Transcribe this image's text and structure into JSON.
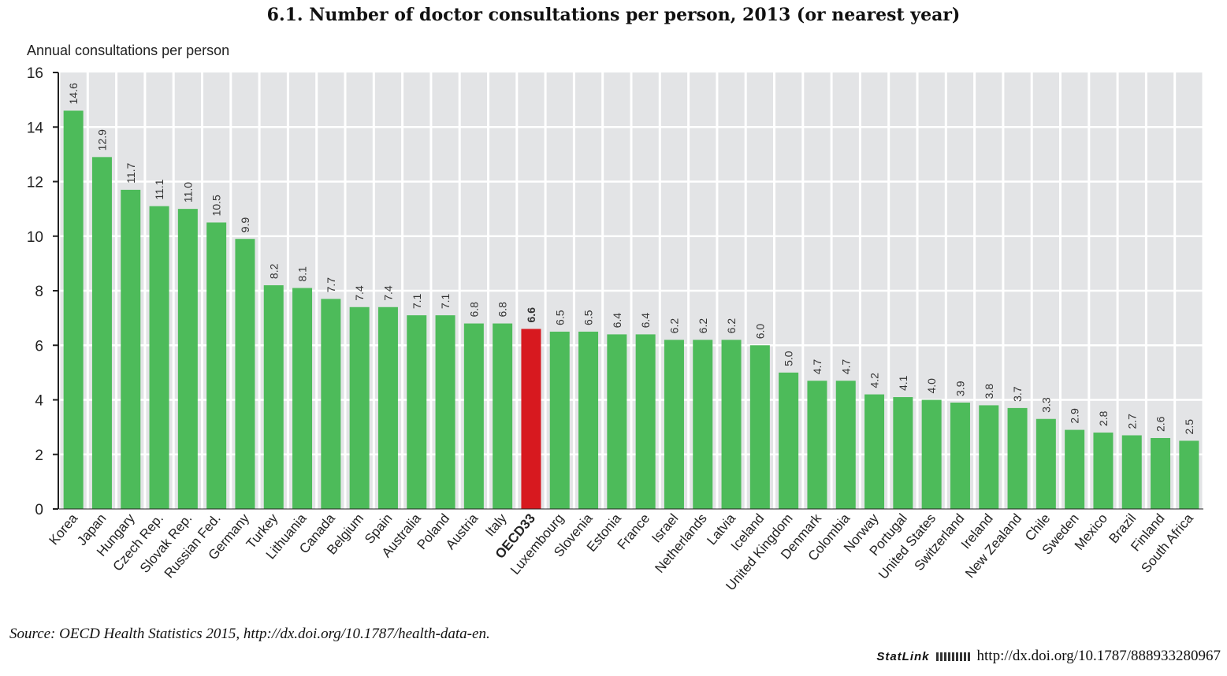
{
  "chart_data": {
    "type": "bar",
    "title": "6.1.  Number of doctor consultations per person, 2013 (or nearest year)",
    "ylabel": "Annual consultations per person",
    "xlabel": "",
    "ylim": [
      0,
      16
    ],
    "yticks": [
      0,
      2,
      4,
      6,
      8,
      10,
      12,
      14,
      16
    ],
    "grid": true,
    "highlight": "OECD33",
    "colors": {
      "bar": "#4dbb5a",
      "highlight": "#d7191f",
      "panel": "#e3e4e6"
    },
    "categories": [
      "Korea",
      "Japan",
      "Hungary",
      "Czech Rep.",
      "Slovak Rep.",
      "Russian Fed.",
      "Germany",
      "Turkey",
      "Lithuania",
      "Canada",
      "Belgium",
      "Spain",
      "Australia",
      "Poland",
      "Austria",
      "Italy",
      "OECD33",
      "Luxembourg",
      "Slovenia",
      "Estonia",
      "France",
      "Israel",
      "Netherlands",
      "Latvia",
      "Iceland",
      "United Kingdom",
      "Denmark",
      "Colombia",
      "Norway",
      "Portugal",
      "United States",
      "Switzerland",
      "Ireland",
      "New Zealand",
      "Chile",
      "Sweden",
      "Mexico",
      "Brazil",
      "Finland",
      "South Africa"
    ],
    "values": [
      14.6,
      12.9,
      11.7,
      11.1,
      11.0,
      10.5,
      9.9,
      8.2,
      8.1,
      7.7,
      7.4,
      7.4,
      7.1,
      7.1,
      6.8,
      6.8,
      6.6,
      6.5,
      6.5,
      6.4,
      6.4,
      6.2,
      6.2,
      6.2,
      6.0,
      5.0,
      4.7,
      4.7,
      4.2,
      4.1,
      4.0,
      3.9,
      3.8,
      3.7,
      3.3,
      2.9,
      2.8,
      2.7,
      2.6,
      2.5
    ]
  },
  "source": "Source:  OECD Health Statistics 2015, http://dx.doi.org/10.1787/health-data-en.",
  "statlink": {
    "label": "StatLink",
    "url": "http://dx.doi.org/10.1787/888933280967"
  }
}
